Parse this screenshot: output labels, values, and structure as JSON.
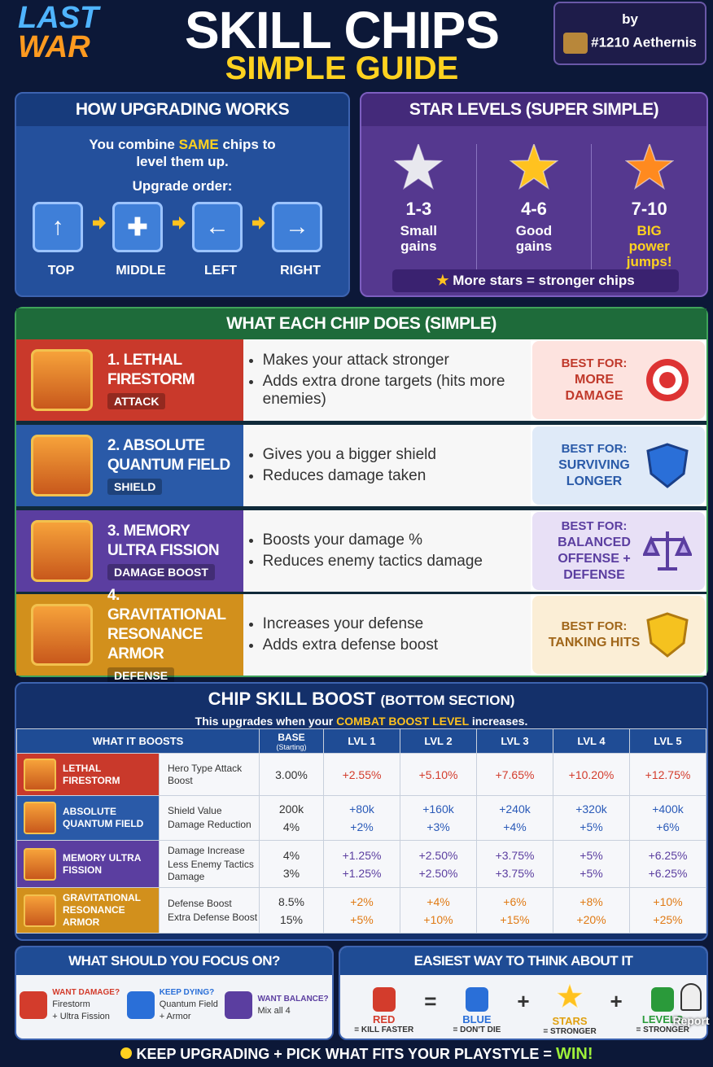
{
  "header": {
    "logo_top": "LAST",
    "logo_bottom": "WAR",
    "title": "SKILL CHIPS",
    "subtitle": "SIMPLE GUIDE",
    "by": "by",
    "author": "#1210 Aethernis"
  },
  "upgrading": {
    "title": "HOW UPGRADING WORKS",
    "text_before": "You combine",
    "highlight": "SAME",
    "text_after": "chips to level them up.",
    "order_label": "Upgrade order:",
    "steps": [
      "TOP",
      "MIDDLE",
      "LEFT",
      "RIGHT"
    ]
  },
  "stars": {
    "title": "STAR LEVELS (SUPER SIMPLE)",
    "levels": [
      {
        "range": "1-3",
        "desc": "Small gains"
      },
      {
        "range": "4-6",
        "desc": "Good gains"
      },
      {
        "range": "7-10",
        "desc": "BIG power jumps!"
      }
    ],
    "footer": "More stars = stronger chips"
  },
  "chips": {
    "title": "WHAT EACH CHIP DOES (SIMPLE)",
    "items": [
      {
        "name": "1. LETHAL FIRESTORM",
        "tag": "ATTACK",
        "bullets": [
          "Makes your attack stronger",
          "Adds extra drone targets (hits more enemies)"
        ],
        "best_label": "BEST FOR:",
        "best": "MORE DAMAGE"
      },
      {
        "name": "2. ABSOLUTE QUANTUM FIELD",
        "tag": "SHIELD",
        "bullets": [
          "Gives you a bigger shield",
          "Reduces damage taken"
        ],
        "best_label": "BEST FOR:",
        "best": "SURVIVING LONGER"
      },
      {
        "name": "3. MEMORY ULTRA FISSION",
        "tag": "DAMAGE BOOST",
        "bullets": [
          "Boosts your damage %",
          "Reduces enemy tactics damage"
        ],
        "best_label": "BEST FOR:",
        "best": "BALANCED OFFENSE + DEFENSE"
      },
      {
        "name": "4. GRAVITATIONAL RESONANCE ARMOR",
        "tag": "DEFENSE",
        "bullets": [
          "Increases your defense",
          "Adds extra defense boost"
        ],
        "best_label": "BEST FOR:",
        "best": "TANKING HITS"
      }
    ]
  },
  "boost": {
    "title": "CHIP SKILL BOOST",
    "title_note": "(BOTTOM SECTION)",
    "note_before": "This upgrades when your",
    "note_highlight": "COMBAT BOOST LEVEL",
    "note_after": "increases.",
    "columns": [
      "WHAT IT BOOSTS",
      "BASE",
      "LVL 1",
      "LVL 2",
      "LVL 3",
      "LVL 4",
      "LVL 5"
    ],
    "base_note": "(Starting)",
    "rows": [
      {
        "chip": "LETHAL FIRESTORM",
        "stats": [
          "Hero Type Attack Boost"
        ],
        "cells": [
          [
            "3.00%"
          ],
          [
            "+2.55%"
          ],
          [
            "+5.10%"
          ],
          [
            "+7.65%"
          ],
          [
            "+10.20%"
          ],
          [
            "+12.75%"
          ]
        ]
      },
      {
        "chip": "ABSOLUTE QUANTUM FIELD",
        "stats": [
          "Shield Value",
          "Damage Reduction"
        ],
        "cells": [
          [
            "200k",
            "4%"
          ],
          [
            "+80k",
            "+2%"
          ],
          [
            "+160k",
            "+3%"
          ],
          [
            "+240k",
            "+4%"
          ],
          [
            "+320k",
            "+5%"
          ],
          [
            "+400k",
            "+6%"
          ]
        ]
      },
      {
        "chip": "MEMORY ULTRA FISSION",
        "stats": [
          "Damage Increase",
          "Less Enemy Tactics Damage"
        ],
        "cells": [
          [
            "4%",
            "3%"
          ],
          [
            "+1.25%",
            "+1.25%"
          ],
          [
            "+2.50%",
            "+2.50%"
          ],
          [
            "+3.75%",
            "+3.75%"
          ],
          [
            "+5%",
            "+5%"
          ],
          [
            "+6.25%",
            "+6.25%"
          ]
        ]
      },
      {
        "chip": "GRAVITATIONAL RESONANCE ARMOR",
        "stats": [
          "Defense Boost",
          "Extra Defense Boost"
        ],
        "cells": [
          [
            "8.5%",
            "15%"
          ],
          [
            "+2%",
            "+5%"
          ],
          [
            "+4%",
            "+10%"
          ],
          [
            "+6%",
            "+15%"
          ],
          [
            "+8%",
            "+20%"
          ],
          [
            "+10%",
            "+25%"
          ]
        ]
      }
    ]
  },
  "focus": {
    "title": "WHAT SHOULD YOU FOCUS ON?",
    "items": [
      {
        "heading": "WANT DAMAGE?",
        "lines": [
          "Firestorm",
          "+ Ultra Fission"
        ]
      },
      {
        "heading": "KEEP DYING?",
        "lines": [
          "Quantum Field",
          "+ Armor"
        ]
      },
      {
        "heading": "WANT BALANCE?",
        "lines": [
          "Mix all 4"
        ]
      }
    ]
  },
  "easiest": {
    "title": "EASIEST WAY TO THINK ABOUT IT",
    "items": [
      {
        "label": "RED",
        "meaning": "= KILL FASTER"
      },
      {
        "label": "BLUE",
        "meaning": "= DON'T DIE"
      },
      {
        "label": "STARS",
        "meaning": "= STRONGER"
      },
      {
        "label": "LEVELS",
        "meaning": "= STRONGER"
      }
    ],
    "operators": [
      "=",
      "+",
      "+"
    ]
  },
  "report": "Report",
  "footer": {
    "text": "KEEP UPGRADING + PICK WHAT FITS YOUR PLAYSTYLE =",
    "highlight": "WIN!"
  }
}
